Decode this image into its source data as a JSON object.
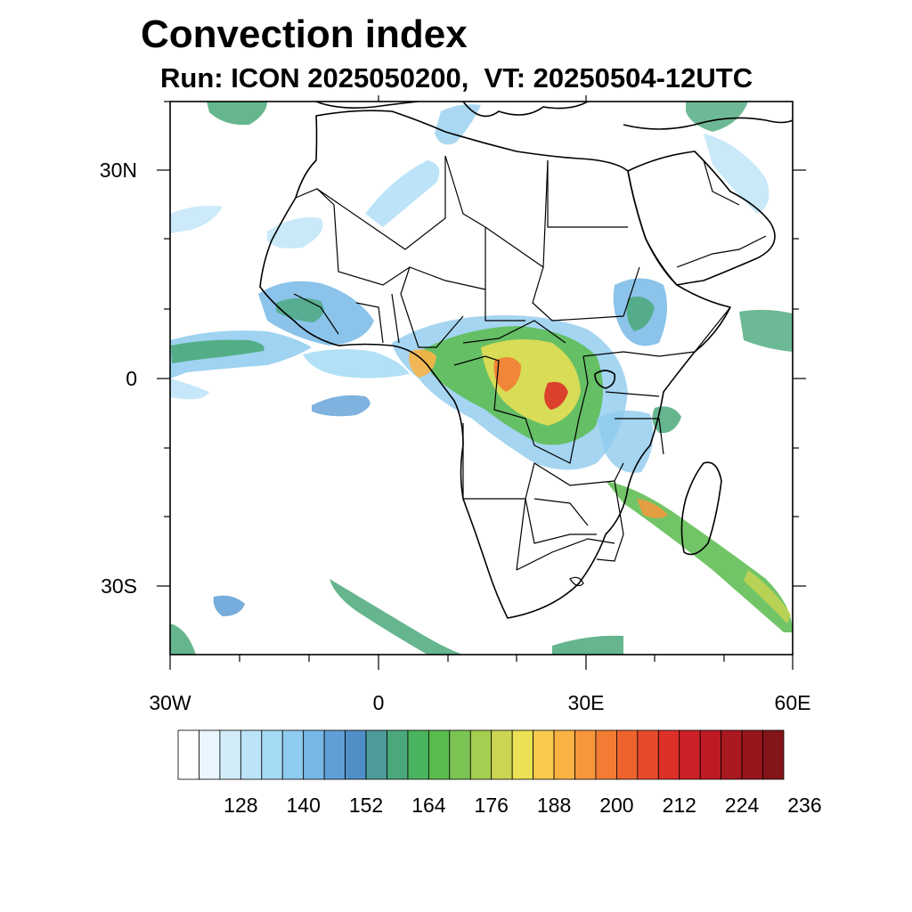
{
  "title": "Convection index",
  "subtitle": "Run: ICON 2025050200,  VT: 20250504-12UTC",
  "map": {
    "lat_labels": [
      "30N",
      "0",
      "30S"
    ],
    "lon_labels": [
      "30W",
      "0",
      "30E",
      "60E"
    ],
    "lon_range": [
      -30,
      60
    ],
    "lat_range": [
      -40,
      40
    ]
  },
  "colorbar": {
    "colors": [
      "#ffffff",
      "#e9f6fd",
      "#d2ecfa",
      "#bce3f8",
      "#a5daf5",
      "#8ecbee",
      "#77b9e6",
      "#5f9fd6",
      "#4f8fc6",
      "#4c9b9a",
      "#4aa87a",
      "#49b35d",
      "#59bb4c",
      "#7bc453",
      "#a5cd4f",
      "#cbd552",
      "#ece054",
      "#f7c94c",
      "#f9b244",
      "#f7963b",
      "#f37c34",
      "#ed622d",
      "#e64a2a",
      "#dc3029",
      "#cc2127",
      "#bd1a24",
      "#aa1820",
      "#96161c",
      "#83141a"
    ],
    "tick_labels": [
      "128",
      "140",
      "152",
      "164",
      "176",
      "188",
      "200",
      "212",
      "224",
      "236"
    ]
  }
}
